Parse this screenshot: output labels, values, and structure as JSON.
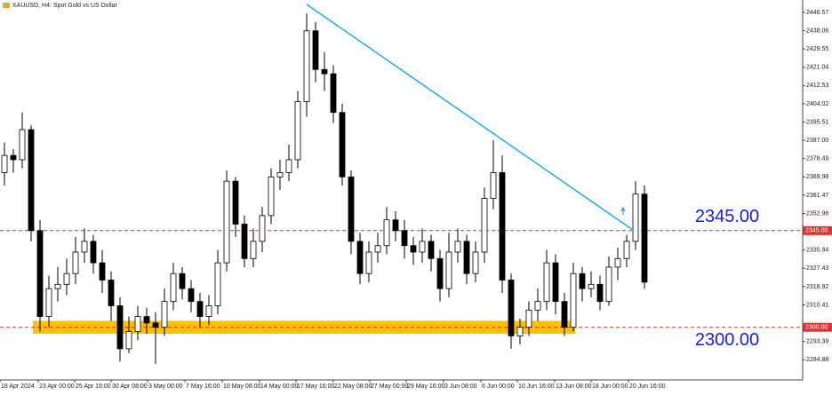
{
  "chart_data": {
    "type": "candlestick",
    "title": "XAUUSD, H4:  Spot Gold vs US Dollar",
    "xlim": [
      0,
      90.3
    ],
    "ylim": [
      2275.5,
      2452.35
    ],
    "yticks": [
      2446.57,
      2438.06,
      2429.55,
      2421.04,
      2412.53,
      2404.02,
      2395.51,
      {
        "value": 2387,
        "label": "2387.00"
      },
      2378.49,
      2369.98,
      2361.47,
      2352.96,
      2335.94,
      2327.43,
      2318.92,
      2310.41,
      2293.39,
      2284.88
    ],
    "xticks": [
      {
        "value": 0,
        "label": "18 Apr 2024"
      },
      {
        "value": 4.3,
        "label": "23 Apr 00:00"
      },
      {
        "value": 8.4,
        "label": "25 Apr 16:00"
      },
      {
        "value": 12.5,
        "label": "30 Apr 08:00"
      },
      {
        "value": 16.6,
        "label": "3 May 00:00"
      },
      {
        "value": 20.8,
        "label": "7 May 16:00"
      },
      {
        "value": 25.0,
        "label": "10 May 08:00"
      },
      {
        "value": 29.2,
        "label": "14 May 00:00"
      },
      {
        "value": 33.3,
        "label": "17 May 16:00"
      },
      {
        "value": 37.5,
        "label": "22 May 08:00"
      },
      {
        "value": 41.6,
        "label": "27 May 00:00"
      },
      {
        "value": 45.7,
        "label": "29 May 16:00"
      },
      {
        "value": 49.9,
        "label": "3 Jun 08:00"
      },
      {
        "value": 54.1,
        "label": "6 Jun 00:00"
      },
      {
        "value": 58.2,
        "label": "10 Jun 16:00"
      },
      {
        "value": 62.4,
        "label": "13 Jun 08:00"
      },
      {
        "value": 66.5,
        "label": "18 Jun 00:00"
      },
      {
        "value": 70.7,
        "label": "20 Jun 16:00"
      }
    ],
    "candles": {
      "x": [
        0.5,
        1.5,
        2.5,
        3.5,
        4.5,
        5.5,
        6.5,
        7.5,
        8.5,
        9.5,
        10.5,
        11.5,
        12.5,
        13.5,
        14.5,
        15.5,
        16.5,
        17.5,
        18.5,
        19.5,
        20.5,
        21.5,
        22.5,
        23.5,
        24.5,
        25.5,
        26.5,
        27.5,
        28.5,
        29.5,
        30.5,
        31.5,
        32.5,
        33.5,
        34.5,
        35.5,
        36.5,
        37.5,
        38.5,
        39.5,
        40.5,
        41.5,
        42.5,
        43.5,
        44.5,
        45.5,
        46.5,
        47.5,
        48.5,
        49.5,
        50.5,
        51.5,
        52.5,
        53.5,
        54.5,
        55.5,
        56.5,
        57.5,
        58.5,
        59.5,
        60.5,
        61.5,
        62.5,
        63.5,
        64.5,
        65.5,
        66.5,
        67.5,
        68.5,
        69.5,
        70.5,
        71.5,
        72.5
      ],
      "open": [
        2372,
        2380,
        2378,
        2392,
        2345,
        2305,
        2318,
        2320,
        2325,
        2335,
        2340,
        2330,
        2322,
        2310,
        2290,
        2298,
        2305,
        2302,
        2300,
        2312,
        2325,
        2318,
        2312,
        2305,
        2310,
        2330,
        2368,
        2348,
        2332,
        2340,
        2352,
        2370,
        2372,
        2378,
        2405,
        2438,
        2420,
        2418,
        2400,
        2370,
        2340,
        2325,
        2335,
        2338,
        2350,
        2345,
        2338,
        2335,
        2340,
        2332,
        2318,
        2335,
        2340,
        2325,
        2335,
        2360,
        2372,
        2322,
        2296,
        2300,
        2308,
        2312,
        2330,
        2312,
        2300,
        2325,
        2318,
        2320,
        2312,
        2328,
        2332,
        2340,
        2362
      ],
      "high": [
        2386,
        2383,
        2400,
        2394,
        2350,
        2324,
        2328,
        2332,
        2342,
        2346,
        2343,
        2336,
        2326,
        2314,
        2305,
        2310,
        2309,
        2307,
        2318,
        2330,
        2328,
        2322,
        2316,
        2315,
        2336,
        2373,
        2370,
        2352,
        2346,
        2356,
        2374,
        2378,
        2385,
        2410,
        2446,
        2442,
        2428,
        2422,
        2404,
        2373,
        2344,
        2340,
        2344,
        2356,
        2354,
        2350,
        2342,
        2346,
        2343,
        2336,
        2344,
        2346,
        2343,
        2340,
        2365,
        2387,
        2380,
        2325,
        2304,
        2312,
        2318,
        2336,
        2334,
        2316,
        2330,
        2328,
        2326,
        2324,
        2333,
        2337,
        2343,
        2368,
        2366
      ],
      "low": [
        2366,
        2372,
        2374,
        2340,
        2298,
        2300,
        2312,
        2315,
        2320,
        2330,
        2325,
        2316,
        2303,
        2284,
        2288,
        2294,
        2297,
        2283,
        2296,
        2308,
        2313,
        2307,
        2300,
        2301,
        2306,
        2326,
        2342,
        2328,
        2328,
        2335,
        2348,
        2364,
        2368,
        2374,
        2398,
        2414,
        2410,
        2395,
        2366,
        2334,
        2320,
        2321,
        2330,
        2334,
        2340,
        2332,
        2329,
        2330,
        2326,
        2312,
        2314,
        2330,
        2320,
        2321,
        2330,
        2355,
        2316,
        2290,
        2292,
        2296,
        2303,
        2308,
        2306,
        2296,
        2298,
        2312,
        2314,
        2308,
        2310,
        2322,
        2328,
        2336,
        2318
      ],
      "close": [
        2380,
        2378,
        2392,
        2345,
        2305,
        2318,
        2320,
        2325,
        2335,
        2340,
        2330,
        2322,
        2310,
        2290,
        2298,
        2305,
        2302,
        2300,
        2312,
        2325,
        2318,
        2312,
        2305,
        2310,
        2330,
        2368,
        2348,
        2332,
        2340,
        2352,
        2370,
        2372,
        2378,
        2405,
        2438,
        2420,
        2418,
        2400,
        2370,
        2340,
        2325,
        2335,
        2338,
        2350,
        2345,
        2338,
        2335,
        2340,
        2332,
        2318,
        2335,
        2340,
        2325,
        2335,
        2360,
        2372,
        2322,
        2296,
        2300,
        2308,
        2312,
        2330,
        2312,
        2300,
        2325,
        2318,
        2320,
        2312,
        2328,
        2332,
        2340,
        2362,
        2321
      ]
    },
    "levels": [
      {
        "value": 2345,
        "label": "2345.00",
        "color": "#e03030"
      },
      {
        "value": 2300,
        "label": "2300.00",
        "color": "#e03030"
      }
    ],
    "zone": {
      "xlim": [
        3.7,
        64.7
      ],
      "ylim": [
        2297,
        2303
      ],
      "color": "#ffc000"
    },
    "trendline": {
      "x": [
        34.5,
        71.3
      ],
      "y": [
        2450.3,
        2345
      ],
      "color": "#1ab0e8"
    }
  }
}
